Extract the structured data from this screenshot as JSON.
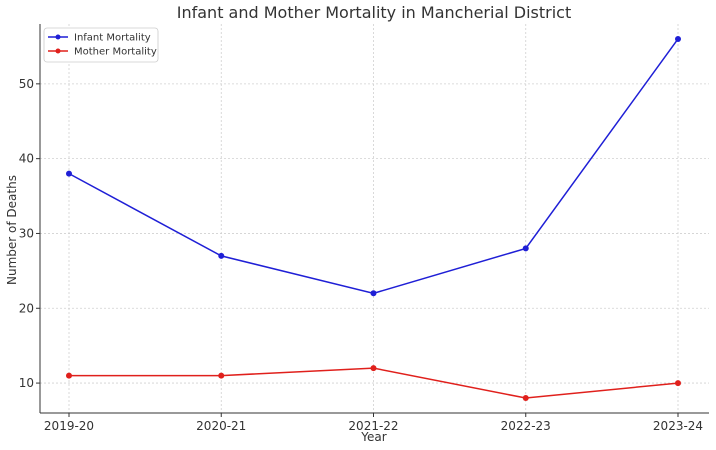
{
  "chart_data": {
    "type": "line",
    "title": "Infant and Mother Mortality in Mancherial District",
    "xlabel": "Year",
    "ylabel": "Number of Deaths",
    "categories": [
      "2019-20",
      "2020-21",
      "2021-22",
      "2022-23",
      "2023-24"
    ],
    "series": [
      {
        "name": "Infant Mortality",
        "values": [
          38,
          27,
          22,
          28,
          56
        ],
        "color": "#1f1fd6"
      },
      {
        "name": "Mother Mortality",
        "values": [
          11,
          11,
          12,
          8,
          10
        ],
        "color": "#e0201c"
      }
    ],
    "yticks": [
      10,
      20,
      30,
      40,
      50
    ],
    "ylim": [
      6,
      58
    ],
    "grid": true,
    "legend_position": "top-left"
  }
}
